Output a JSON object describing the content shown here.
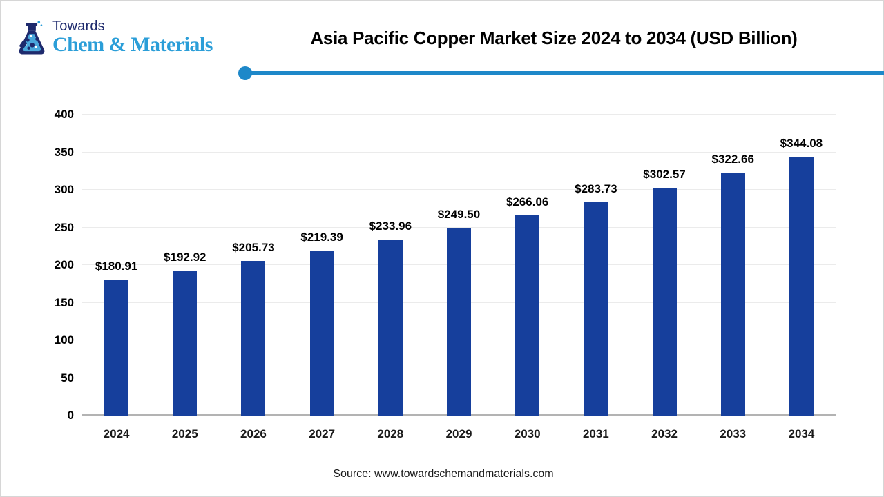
{
  "header": {
    "logo": {
      "top": "Towards",
      "bottom": "Chem & Materials"
    },
    "title": "Asia Pacific Copper Market Size 2024 to 2034 (USD Billion)"
  },
  "chart_data": {
    "type": "bar",
    "title": "Asia Pacific Copper Market Size 2024 to 2034 (USD Billion)",
    "categories": [
      "2024",
      "2025",
      "2026",
      "2027",
      "2028",
      "2029",
      "2030",
      "2031",
      "2032",
      "2033",
      "2034"
    ],
    "values": [
      180.91,
      192.92,
      205.73,
      219.39,
      233.96,
      249.5,
      266.06,
      283.73,
      302.57,
      322.66,
      344.08
    ],
    "labels": [
      "$180.91",
      "$192.92",
      "$205.73",
      "$219.39",
      "$233.96",
      "$249.50",
      "$266.06",
      "$283.73",
      "$302.57",
      "$322.66",
      "$344.08"
    ],
    "xlabel": "",
    "ylabel": "",
    "ylim": [
      0,
      400
    ],
    "yticks": [
      0,
      50,
      100,
      150,
      200,
      250,
      300,
      350,
      400
    ],
    "grid": true,
    "legend": "none",
    "bar_color": "#163F9C",
    "unit": "USD Billion"
  },
  "footer": {
    "source": "Source: www.towardschemandmaterials.com"
  },
  "colors": {
    "bar": "#163F9C",
    "divider": "#1e88c9",
    "logo_navy": "#1e2a6d",
    "logo_blue": "#2b9ed8",
    "gridline": "#ebebeb",
    "axis_line": "#b3b3b3"
  }
}
